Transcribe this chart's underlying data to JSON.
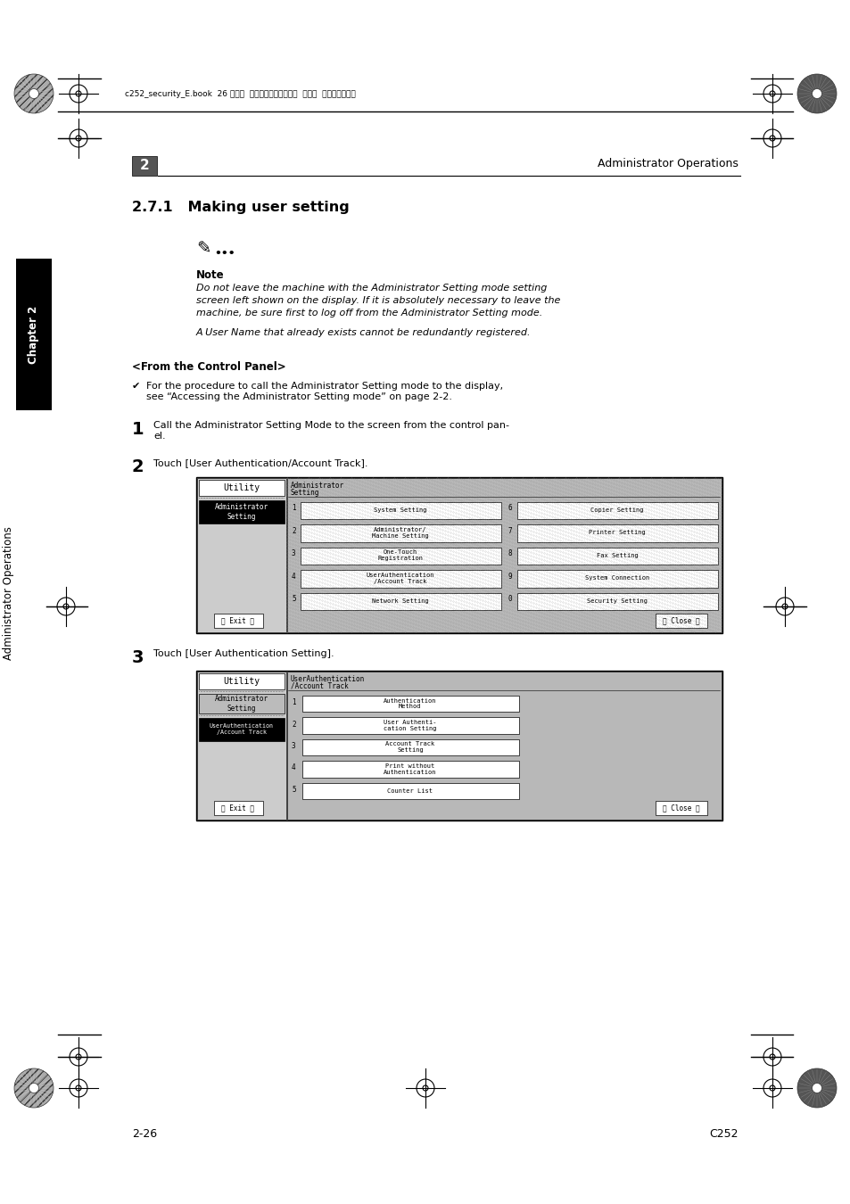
{
  "bg_color": "#ffffff",
  "page_header_text": "c252_security_E.book  26 ページ  ２００７年４月１０日  火曜日  午後３時４５分",
  "chapter_header_right": "Administrator Operations",
  "chapter_number": "2",
  "section_title": "2.7.1   Making user setting",
  "note_label": "Note",
  "note_text1": "Do not leave the machine with the Administrator Setting mode setting",
  "note_text2": "screen left shown on the display. If it is absolutely necessary to leave the",
  "note_text3": "machine, be sure first to log off from the Administrator Setting mode.",
  "note_text4": "A User Name that already exists cannot be redundantly registered.",
  "from_control_panel": "<From the Control Panel>",
  "step1_text": "Call the Administrator Setting Mode to the screen from the control pan-\nel.",
  "step2_text": "Touch [User Authentication/Account Track].",
  "step3_text": "Touch [User Authentication Setting].",
  "sidebar_text": "Administrator Operations",
  "sidebar_chapter": "Chapter 2",
  "page_num_left": "2-26",
  "page_num_right": "C252"
}
